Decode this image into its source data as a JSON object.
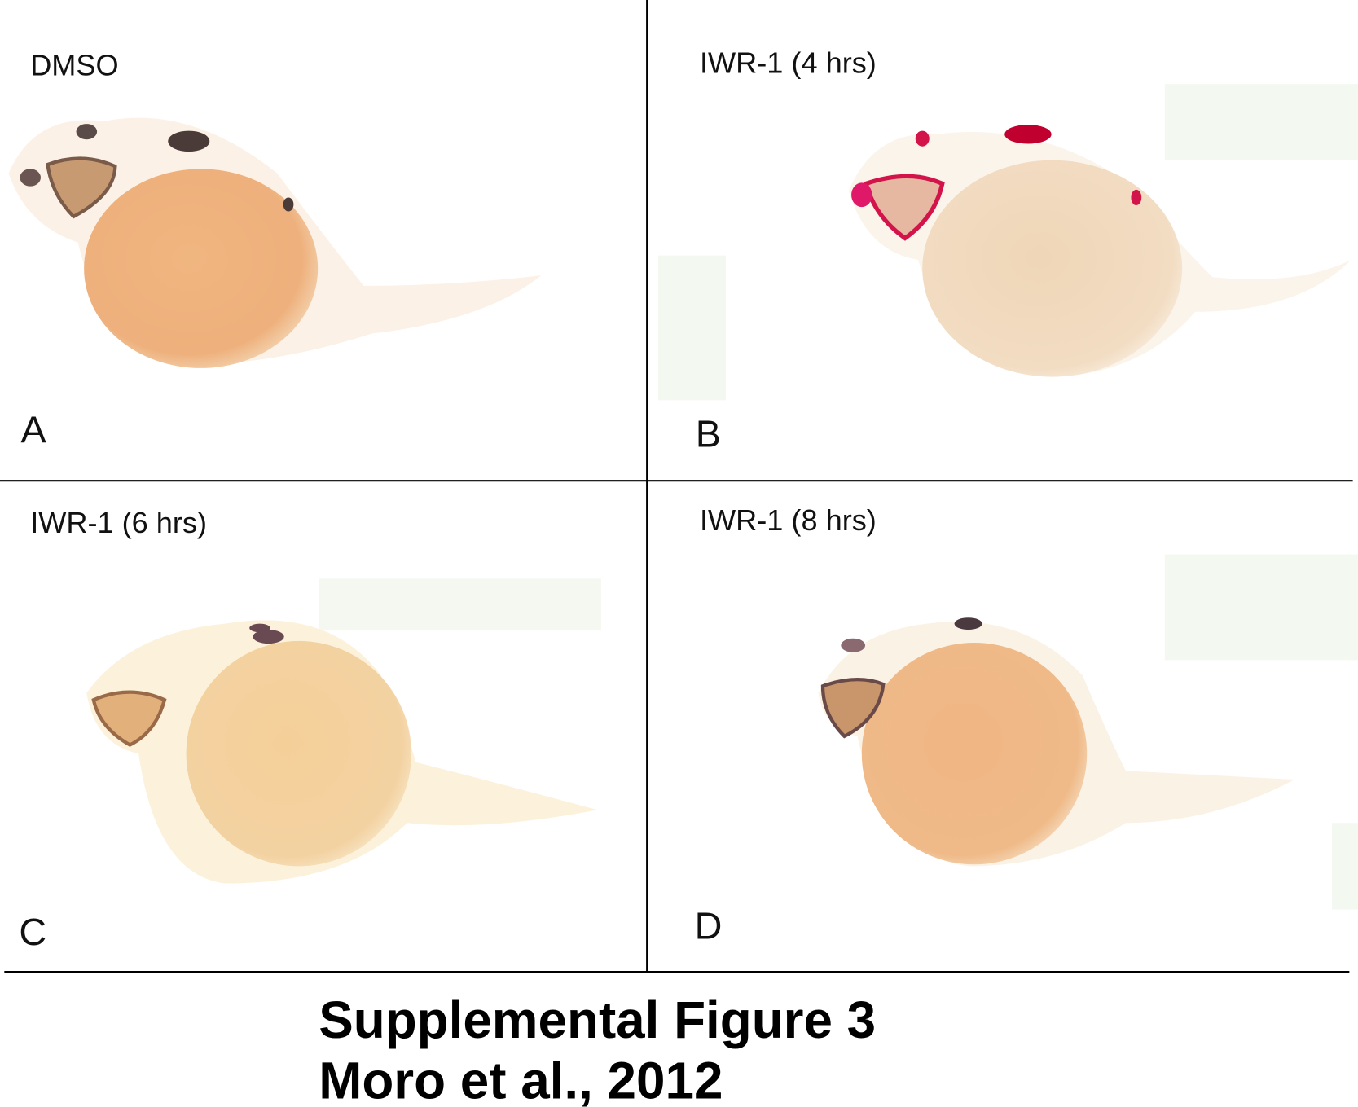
{
  "panels": [
    {
      "title": "DMSO",
      "letter": "A"
    },
    {
      "title": "IWR-1 (4 hrs)",
      "letter": "B"
    },
    {
      "title": "IWR-1 (6 hrs)",
      "letter": "C"
    },
    {
      "title": "IWR-1 (8 hrs)",
      "letter": "D"
    }
  ],
  "caption": {
    "line1": "Supplemental Figure 3",
    "line2": "Moro et al., 2012"
  }
}
